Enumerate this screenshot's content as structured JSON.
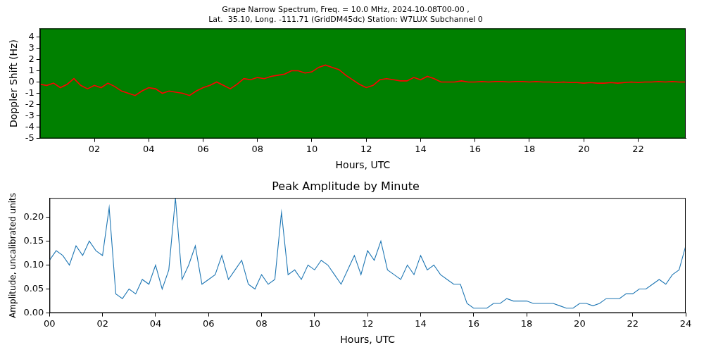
{
  "chart_data": [
    {
      "type": "line",
      "title": "Grape Narrow Spectrum, Freq. = 10.0 MHz, 2024-10-08T00-00 ,",
      "subtitle": "Lat.  35.10, Long. -111.71 (GridDM45dc) Station: W7LUX Subchannel 0",
      "x_label": "Hours, UTC",
      "y_label": "Doppler Shift (Hz)",
      "x": [
        0,
        0.25,
        0.5,
        0.75,
        1,
        1.25,
        1.5,
        1.75,
        2,
        2.25,
        2.5,
        2.75,
        3,
        3.25,
        3.5,
        3.75,
        4,
        4.25,
        4.5,
        4.75,
        5,
        5.25,
        5.5,
        5.75,
        6,
        6.25,
        6.5,
        6.75,
        7,
        7.25,
        7.5,
        7.75,
        8,
        8.25,
        8.5,
        8.75,
        9,
        9.25,
        9.5,
        9.75,
        10,
        10.25,
        10.5,
        10.75,
        11,
        11.25,
        11.5,
        11.75,
        12,
        12.25,
        12.5,
        12.75,
        13,
        13.25,
        13.5,
        13.75,
        14,
        14.25,
        14.5,
        14.75,
        15,
        15.25,
        15.5,
        15.75,
        16,
        16.25,
        16.5,
        16.75,
        17,
        17.25,
        17.5,
        17.75,
        18,
        18.25,
        18.5,
        18.75,
        19,
        19.25,
        19.5,
        19.75,
        20,
        20.25,
        20.5,
        20.75,
        21,
        21.25,
        21.5,
        21.75,
        22,
        22.25,
        22.5,
        22.75,
        23,
        23.25,
        23.5,
        23.75
      ],
      "values": [
        -0.2,
        -0.3,
        -0.1,
        -0.5,
        -0.2,
        0.3,
        -0.3,
        -0.6,
        -0.3,
        -0.5,
        -0.1,
        -0.4,
        -0.8,
        -1.0,
        -1.2,
        -0.8,
        -0.5,
        -0.6,
        -1.0,
        -0.8,
        -0.9,
        -1.0,
        -1.2,
        -0.8,
        -0.5,
        -0.3,
        0.0,
        -0.3,
        -0.6,
        -0.2,
        0.3,
        0.2,
        0.4,
        0.3,
        0.5,
        0.6,
        0.7,
        1.0,
        1.0,
        0.8,
        0.9,
        1.3,
        1.5,
        1.3,
        1.1,
        0.6,
        0.2,
        -0.2,
        -0.5,
        -0.3,
        0.2,
        0.3,
        0.2,
        0.1,
        0.1,
        0.4,
        0.2,
        0.5,
        0.3,
        0.0,
        0.0,
        0.0,
        0.1,
        0.0,
        0.0,
        0.05,
        0.0,
        0.05,
        0.05,
        0.0,
        0.05,
        0.05,
        0.0,
        0.05,
        0.0,
        0.0,
        -0.05,
        0.0,
        -0.05,
        -0.05,
        -0.1,
        -0.05,
        -0.1,
        -0.1,
        -0.05,
        -0.1,
        -0.05,
        0.0,
        -0.05,
        0.0,
        0.0,
        0.05,
        0.0,
        0.05,
        0.0,
        0.0
      ],
      "color": "#ff0000",
      "xlim": [
        0,
        23.75
      ],
      "xticks": [
        {
          "value": 2,
          "label": "02"
        },
        {
          "value": 4,
          "label": "04"
        },
        {
          "value": 6,
          "label": "06"
        },
        {
          "value": 8,
          "label": "08"
        },
        10,
        12,
        14,
        16,
        18,
        20,
        22
      ],
      "ylim": [
        -5,
        4.75
      ],
      "yticks": [
        -5,
        -4,
        -3,
        -2,
        -1,
        0,
        1,
        2,
        3,
        4
      ],
      "grid": false
    },
    {
      "type": "line",
      "title": "Peak Amplitude by Minute",
      "x_label": "Hours, UTC",
      "y_label": "Amplitude, uncalibrated units",
      "x": [
        0,
        0.25,
        0.5,
        0.75,
        1,
        1.25,
        1.5,
        1.75,
        2,
        2.25,
        2.5,
        2.75,
        3,
        3.25,
        3.5,
        3.75,
        4,
        4.25,
        4.5,
        4.75,
        5,
        5.25,
        5.5,
        5.75,
        6,
        6.25,
        6.5,
        6.75,
        7,
        7.25,
        7.5,
        7.75,
        8,
        8.25,
        8.5,
        8.75,
        9,
        9.25,
        9.5,
        9.75,
        10,
        10.25,
        10.5,
        10.75,
        11,
        11.25,
        11.5,
        11.75,
        12,
        12.25,
        12.5,
        12.75,
        13,
        13.25,
        13.5,
        13.75,
        14,
        14.25,
        14.5,
        14.75,
        15,
        15.25,
        15.5,
        15.75,
        16,
        16.25,
        16.5,
        16.75,
        17,
        17.25,
        17.5,
        17.75,
        18,
        18.25,
        18.5,
        18.75,
        19,
        19.25,
        19.5,
        19.75,
        20,
        20.25,
        20.5,
        20.75,
        21,
        21.25,
        21.5,
        21.75,
        22,
        22.25,
        22.5,
        22.75,
        23,
        23.25,
        23.5,
        23.75,
        24
      ],
      "values": [
        0.11,
        0.13,
        0.12,
        0.1,
        0.14,
        0.12,
        0.15,
        0.13,
        0.12,
        0.22,
        0.04,
        0.03,
        0.05,
        0.04,
        0.07,
        0.06,
        0.1,
        0.05,
        0.09,
        0.24,
        0.07,
        0.1,
        0.14,
        0.06,
        0.07,
        0.08,
        0.12,
        0.07,
        0.09,
        0.11,
        0.06,
        0.05,
        0.08,
        0.06,
        0.07,
        0.21,
        0.08,
        0.09,
        0.07,
        0.1,
        0.09,
        0.11,
        0.1,
        0.08,
        0.06,
        0.09,
        0.12,
        0.08,
        0.13,
        0.11,
        0.15,
        0.09,
        0.08,
        0.07,
        0.1,
        0.08,
        0.12,
        0.09,
        0.1,
        0.08,
        0.07,
        0.06,
        0.06,
        0.02,
        0.01,
        0.01,
        0.01,
        0.02,
        0.02,
        0.03,
        0.025,
        0.025,
        0.025,
        0.02,
        0.02,
        0.02,
        0.02,
        0.015,
        0.01,
        0.01,
        0.02,
        0.02,
        0.015,
        0.02,
        0.03,
        0.03,
        0.03,
        0.04,
        0.04,
        0.05,
        0.05,
        0.06,
        0.07,
        0.06,
        0.08,
        0.09,
        0.14
      ],
      "color": "#1f77b4",
      "xlim": [
        0,
        24
      ],
      "xticks": [
        {
          "value": 0,
          "label": "00"
        },
        {
          "value": 2,
          "label": "02"
        },
        {
          "value": 4,
          "label": "04"
        },
        {
          "value": 6,
          "label": "06"
        },
        {
          "value": 8,
          "label": "08"
        },
        10,
        12,
        14,
        16,
        18,
        20,
        22,
        24
      ],
      "ylim": [
        0,
        0.24
      ],
      "yticks": [
        {
          "value": 0,
          "label": "0.00"
        },
        0.05,
        {
          "value": 0.1,
          "label": "0.10"
        },
        0.15,
        {
          "value": 0.2,
          "label": "0.20"
        }
      ],
      "grid": false
    }
  ]
}
